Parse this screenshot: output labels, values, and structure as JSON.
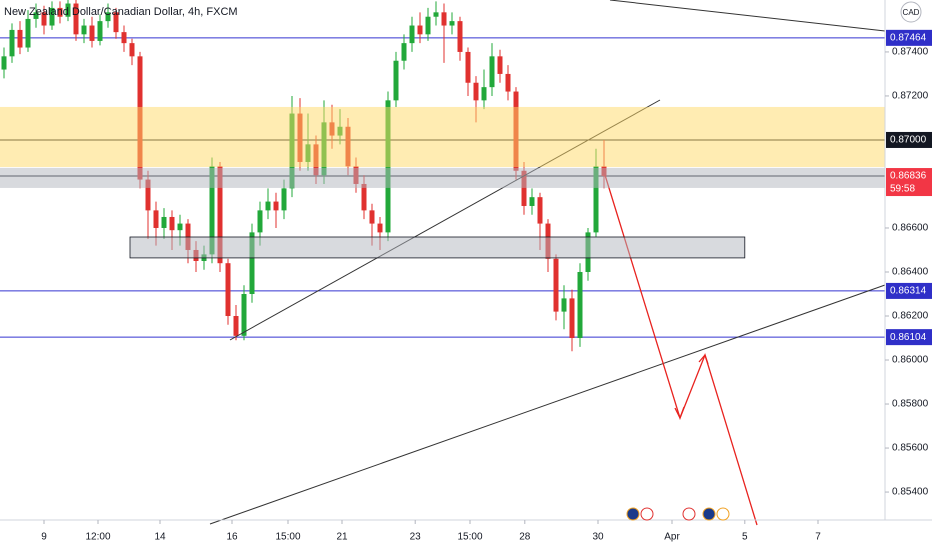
{
  "chart_data": {
    "type": "candlestick",
    "title": "New Zealand Dollar/Canadian Dollar, 4h, FXCM",
    "currency": "CAD",
    "up_color": "#22a83a",
    "down_color": "#e0312f",
    "open": [
      0.8732,
      0.8738,
      0.875,
      0.8742,
      0.8755,
      0.8758,
      0.8752,
      0.876,
      0.8756,
      0.8762,
      0.8748,
      0.8752,
      0.8745,
      0.8754,
      0.8758,
      0.8749,
      0.8744,
      0.8738,
      0.8682,
      0.8668,
      0.866,
      0.8665,
      0.8659,
      0.8662,
      0.865,
      0.8645,
      0.8648,
      0.8688,
      0.8644,
      0.862,
      0.8611,
      0.863,
      0.8658,
      0.8668,
      0.8672,
      0.8668,
      0.8678,
      0.8712,
      0.869,
      0.8698,
      0.8684,
      0.8708,
      0.8702,
      0.8706,
      0.8688,
      0.868,
      0.8668,
      0.8662,
      0.8658,
      0.8718,
      0.8736,
      0.8744,
      0.8752,
      0.8748,
      0.8756,
      0.8758,
      0.8752,
      0.8754,
      0.874,
      0.8726,
      0.8718,
      0.8724,
      0.8738,
      0.873,
      0.8722,
      0.8686,
      0.867,
      0.8674,
      0.8662,
      0.8646,
      0.8622,
      0.8628,
      0.861,
      0.864,
      0.8658,
      0.8688
    ],
    "high": [
      0.8742,
      0.8753,
      0.8754,
      0.8759,
      0.8762,
      0.8761,
      0.8763,
      0.8763,
      0.8764,
      0.8764,
      0.8755,
      0.8756,
      0.8757,
      0.8762,
      0.876,
      0.8752,
      0.8746,
      0.874,
      0.8686,
      0.8672,
      0.8669,
      0.8668,
      0.8666,
      0.8664,
      0.8654,
      0.8652,
      0.8692,
      0.869,
      0.8646,
      0.8625,
      0.8634,
      0.8662,
      0.8672,
      0.8678,
      0.8676,
      0.8682,
      0.872,
      0.8719,
      0.8712,
      0.8702,
      0.8718,
      0.8716,
      0.8714,
      0.871,
      0.8692,
      0.8684,
      0.8671,
      0.8665,
      0.8722,
      0.874,
      0.8748,
      0.8756,
      0.8758,
      0.876,
      0.8763,
      0.8762,
      0.8758,
      0.8756,
      0.8742,
      0.8729,
      0.8732,
      0.8744,
      0.8741,
      0.8734,
      0.8724,
      0.869,
      0.8678,
      0.8676,
      0.8664,
      0.8648,
      0.8634,
      0.8632,
      0.8644,
      0.866,
      0.8696,
      0.87
    ],
    "low": [
      0.8728,
      0.8735,
      0.8739,
      0.874,
      0.8751,
      0.8748,
      0.875,
      0.8753,
      0.8754,
      0.8745,
      0.8744,
      0.8742,
      0.8743,
      0.8751,
      0.8746,
      0.874,
      0.8734,
      0.8678,
      0.8655,
      0.8652,
      0.8655,
      0.865,
      0.8652,
      0.8644,
      0.864,
      0.8641,
      0.8644,
      0.864,
      0.8616,
      0.8609,
      0.8609,
      0.8626,
      0.8652,
      0.8664,
      0.866,
      0.8664,
      0.8674,
      0.8686,
      0.8686,
      0.868,
      0.868,
      0.8696,
      0.8698,
      0.8684,
      0.8676,
      0.8664,
      0.8652,
      0.865,
      0.8654,
      0.8715,
      0.8732,
      0.874,
      0.8744,
      0.8745,
      0.8752,
      0.8735,
      0.8748,
      0.8736,
      0.872,
      0.8708,
      0.8714,
      0.872,
      0.8726,
      0.8718,
      0.8682,
      0.8666,
      0.8666,
      0.865,
      0.864,
      0.8618,
      0.8614,
      0.8604,
      0.8606,
      0.8636,
      0.8656,
      0.8678
    ],
    "close": [
      0.8738,
      0.875,
      0.8742,
      0.8755,
      0.8758,
      0.8752,
      0.876,
      0.8756,
      0.8762,
      0.8748,
      0.8752,
      0.8745,
      0.8754,
      0.8758,
      0.8749,
      0.8744,
      0.8738,
      0.8682,
      0.8668,
      0.866,
      0.8665,
      0.8659,
      0.8662,
      0.865,
      0.8645,
      0.8648,
      0.8688,
      0.8644,
      0.862,
      0.8611,
      0.863,
      0.8658,
      0.8668,
      0.8672,
      0.8668,
      0.8678,
      0.8712,
      0.869,
      0.8698,
      0.8684,
      0.8708,
      0.8702,
      0.8706,
      0.8688,
      0.868,
      0.8668,
      0.8662,
      0.8658,
      0.8718,
      0.8736,
      0.8744,
      0.8752,
      0.8748,
      0.8756,
      0.8758,
      0.8752,
      0.8754,
      0.874,
      0.8726,
      0.8718,
      0.8724,
      0.8738,
      0.873,
      0.8722,
      0.8686,
      0.867,
      0.8674,
      0.8662,
      0.8646,
      0.8622,
      0.8628,
      0.861,
      0.864,
      0.8658,
      0.8688,
      0.86836
    ],
    "xlim": [
      -0.5,
      110.125
    ],
    "xticks": [
      {
        "value": 5,
        "label": "9"
      },
      {
        "value": 11.75,
        "label": "12:00"
      },
      {
        "value": 19.5,
        "label": "14"
      },
      {
        "value": 28.5,
        "label": "16"
      },
      {
        "value": 35.5,
        "label": "15:00"
      },
      {
        "value": 42.25,
        "label": "21"
      },
      {
        "value": 51.4,
        "label": "23"
      },
      {
        "value": 58.25,
        "label": "15:00"
      },
      {
        "value": 65.1,
        "label": "28"
      },
      {
        "value": 74.25,
        "label": "30"
      },
      {
        "value": 83.5,
        "label": "Apr"
      },
      {
        "value": 92.6,
        "label": "5"
      },
      {
        "value": 101.75,
        "label": "7"
      }
    ],
    "ylim": [
      0.85273,
      0.87636
    ],
    "yticks": [
      {
        "value": 0.874,
        "label": "0.87400"
      },
      {
        "value": 0.872,
        "label": "0.87200"
      },
      {
        "value": 0.866,
        "label": "0.86600"
      },
      {
        "value": 0.864,
        "label": "0.86400"
      },
      {
        "value": 0.862,
        "label": "0.86200"
      },
      {
        "value": 0.86,
        "label": "0.86000"
      },
      {
        "value": 0.858,
        "label": "0.85800"
      },
      {
        "value": 0.856,
        "label": "0.85600"
      },
      {
        "value": 0.854,
        "label": "0.85400"
      }
    ],
    "levels": [
      {
        "value": 0.87464,
        "label": "0.87464",
        "color": "#3434d0",
        "label_color": "#2f2fc8"
      },
      {
        "value": 0.87,
        "label": "0.87000",
        "color": "#131722",
        "label_color": "#131722"
      },
      {
        "value": 0.86836,
        "label": "0.86836",
        "sublabel": "59:58",
        "color": "#131722",
        "label_color": "#f23645"
      },
      {
        "value": 0.86314,
        "label": "0.86314",
        "color": "#3434d0",
        "label_color": "#2f2fc8"
      },
      {
        "value": 0.86104,
        "label": "0.86104",
        "color": "#3434d0",
        "label_color": "#2f2fc8"
      }
    ],
    "zones": [
      {
        "from": 0.8715,
        "to": 0.86877,
        "x_range": [
          -0.5,
          110.125
        ],
        "color": "#ffd966"
      },
      {
        "from": 0.86873,
        "to": 0.86782,
        "x_range": [
          -0.5,
          110.125
        ],
        "color": "#b2b5be"
      },
      {
        "from": 0.86559,
        "to": 0.86464,
        "x_range": [
          15.75,
          92.6
        ],
        "color": "#b2b5be"
      }
    ]
  }
}
